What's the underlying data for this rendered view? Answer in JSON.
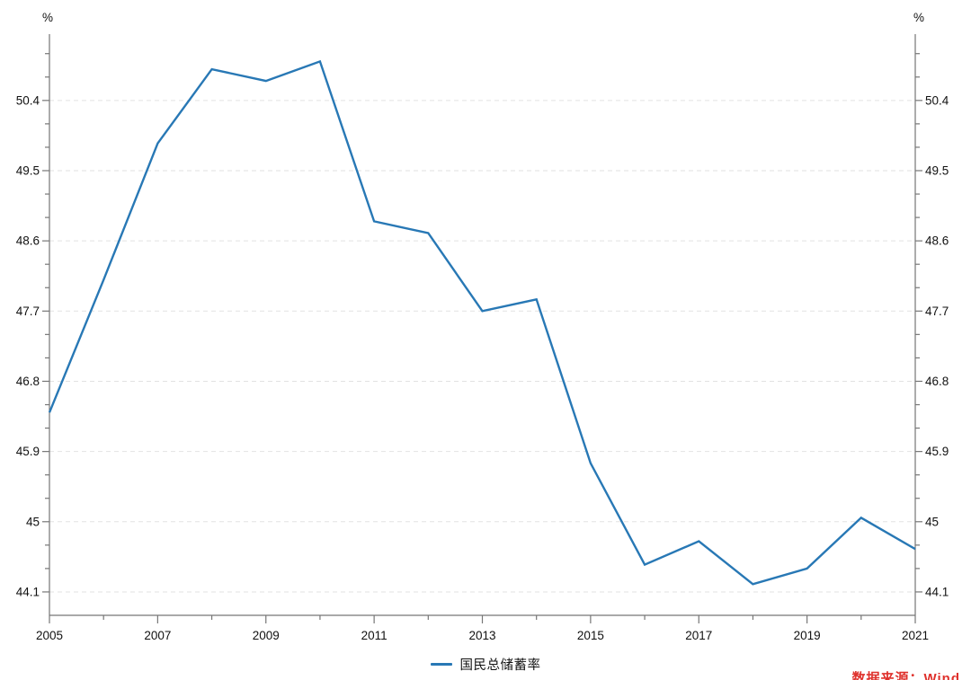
{
  "chart_data": {
    "type": "line",
    "title": "",
    "unit_label": "%",
    "x": [
      2005,
      2006,
      2007,
      2008,
      2009,
      2010,
      2011,
      2012,
      2013,
      2014,
      2015,
      2016,
      2017,
      2018,
      2019,
      2020,
      2021
    ],
    "series": [
      {
        "name": "国民总储蓄率",
        "color": "#2878b5",
        "values": [
          46.4,
          48.1,
          49.85,
          50.8,
          50.65,
          50.9,
          48.85,
          48.7,
          47.7,
          47.85,
          45.75,
          44.45,
          44.75,
          44.2,
          44.4,
          45.05,
          44.65
        ]
      }
    ],
    "xlim": [
      2005,
      2021
    ],
    "ylim": [
      43.8,
      51.25
    ],
    "x_tick_labels": [
      "2005",
      "2007",
      "2009",
      "2011",
      "2013",
      "2015",
      "2017",
      "2019",
      "2021"
    ],
    "y_tick_labels": [
      "44.1",
      "45",
      "45.9",
      "46.8",
      "47.7",
      "48.6",
      "49.5",
      "50.4"
    ],
    "y_major_ticks": [
      44.1,
      45,
      45.9,
      46.8,
      47.7,
      48.6,
      49.5,
      50.4
    ],
    "y_minor_step": 0.3,
    "grid": "horizontal-dashed",
    "legend_position": "bottom-center",
    "axis_color": "#767676",
    "grid_color": "#e2e2e2",
    "text_color": "#111111"
  },
  "legend": {
    "label": "国民总储蓄率"
  },
  "source": {
    "text": "数据来源：Wind",
    "color": "#df312c"
  }
}
